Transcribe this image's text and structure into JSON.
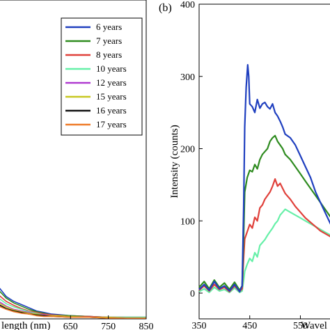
{
  "chart_data": [
    {
      "type": "line",
      "panel": "a",
      "xlabel_visible": "length (nm)",
      "xticks": [
        650,
        750,
        850
      ],
      "xlim": [
        460,
        850
      ],
      "ylim": [
        0,
        400
      ],
      "legend": {
        "placement": "top-right",
        "entries": [
          {
            "name": "6 years",
            "color": "#1f3fbf"
          },
          {
            "name": "7 years",
            "color": "#2e8b1f"
          },
          {
            "name": "8 years",
            "color": "#e0403a"
          },
          {
            "name": "10 years",
            "color": "#66f0a8"
          },
          {
            "name": "12 years",
            "color": "#b03ad0"
          },
          {
            "name": "15 years",
            "color": "#c8c820"
          },
          {
            "name": "16 years",
            "color": "#111111"
          },
          {
            "name": "17 years",
            "color": "#ee7a28"
          }
        ]
      },
      "series": [
        {
          "name": "6 years",
          "color": "#1f3fbf",
          "x": [
            460,
            480,
            500,
            520,
            540,
            560,
            580,
            600,
            650,
            700,
            750,
            800,
            850
          ],
          "y": [
            40,
            28,
            22,
            18,
            14,
            10,
            8,
            6,
            4,
            3,
            2,
            2,
            2
          ]
        },
        {
          "name": "7 years",
          "color": "#2e8b1f",
          "x": [
            460,
            480,
            500,
            520,
            540,
            560,
            580,
            600,
            650,
            700,
            750,
            800,
            850
          ],
          "y": [
            36,
            26,
            20,
            16,
            12,
            9,
            7,
            5,
            4,
            3,
            2,
            2,
            2
          ]
        },
        {
          "name": "8 years",
          "color": "#e0403a",
          "x": [
            460,
            480,
            500,
            520,
            540,
            560,
            580,
            600,
            650,
            700,
            750,
            800,
            850
          ],
          "y": [
            30,
            22,
            17,
            13,
            10,
            8,
            6,
            5,
            3,
            3,
            2,
            2,
            2
          ]
        },
        {
          "name": "10 years",
          "color": "#66f0a8",
          "x": [
            460,
            480,
            500,
            520,
            540,
            560,
            580,
            600,
            650,
            700,
            750,
            800,
            850
          ],
          "y": [
            26,
            19,
            15,
            12,
            9,
            7,
            5,
            4,
            3,
            2,
            2,
            2,
            2
          ]
        },
        {
          "name": "12 years",
          "color": "#b03ad0",
          "x": [
            460,
            480,
            500,
            520,
            540,
            560,
            580,
            600,
            650,
            700,
            750,
            800,
            850
          ],
          "y": [
            22,
            16,
            12,
            10,
            8,
            6,
            5,
            4,
            3,
            2,
            2,
            1,
            1
          ]
        },
        {
          "name": "15 years",
          "color": "#c8c820",
          "x": [
            460,
            480,
            500,
            520,
            540,
            560,
            580,
            600,
            650,
            700,
            750,
            800,
            850
          ],
          "y": [
            20,
            15,
            11,
            9,
            7,
            6,
            4,
            4,
            3,
            2,
            2,
            1,
            1
          ]
        },
        {
          "name": "16 years",
          "color": "#111111",
          "x": [
            460,
            480,
            500,
            520,
            540,
            560,
            580,
            600,
            650,
            700,
            750,
            800,
            850
          ],
          "y": [
            18,
            13,
            10,
            8,
            6,
            5,
            4,
            3,
            2,
            2,
            1,
            1,
            1
          ]
        },
        {
          "name": "17 years",
          "color": "#ee7a28",
          "x": [
            460,
            480,
            500,
            520,
            540,
            560,
            580,
            600,
            650,
            700,
            750,
            800,
            850
          ],
          "y": [
            16,
            12,
            9,
            7,
            6,
            4,
            3,
            3,
            2,
            2,
            1,
            1,
            1
          ]
        }
      ]
    },
    {
      "type": "line",
      "panel": "b",
      "panel_label": "(b)",
      "xlabel_visible": "Wavel",
      "ylabel": "Intensity (counts)",
      "xticks": [
        350,
        450,
        550
      ],
      "yticks": [
        0,
        100,
        200,
        300,
        400
      ],
      "xlim": [
        350,
        625
      ],
      "ylim": [
        0,
        400
      ],
      "series": [
        {
          "name": "6 years",
          "color": "#1f3fbf",
          "x": [
            350,
            360,
            370,
            380,
            390,
            400,
            410,
            420,
            430,
            435,
            438,
            440,
            443,
            446,
            448,
            450,
            455,
            460,
            465,
            470,
            475,
            480,
            485,
            490,
            495,
            500,
            505,
            510,
            515,
            520,
            530,
            540,
            550,
            560,
            570,
            580,
            590,
            600,
            610,
            620,
            625
          ],
          "y": [
            5,
            12,
            4,
            16,
            6,
            10,
            3,
            12,
            2,
            10,
            120,
            230,
            285,
            316,
            300,
            262,
            258,
            250,
            268,
            256,
            262,
            264,
            258,
            255,
            262,
            250,
            245,
            238,
            230,
            220,
            215,
            205,
            190,
            175,
            160,
            140,
            125,
            110,
            95,
            85,
            80
          ]
        },
        {
          "name": "7 years",
          "color": "#2e8b1f",
          "x": [
            350,
            360,
            370,
            380,
            390,
            400,
            410,
            420,
            430,
            435,
            438,
            440,
            445,
            450,
            455,
            460,
            465,
            470,
            475,
            480,
            485,
            490,
            495,
            500,
            505,
            510,
            515,
            520,
            530,
            540,
            550,
            560,
            570,
            580,
            590,
            600,
            610,
            620,
            625
          ],
          "y": [
            8,
            16,
            6,
            18,
            8,
            14,
            5,
            15,
            4,
            10,
            80,
            140,
            160,
            170,
            168,
            178,
            172,
            185,
            192,
            196,
            200,
            210,
            215,
            218,
            210,
            205,
            200,
            192,
            185,
            175,
            165,
            155,
            145,
            135,
            125,
            115,
            105,
            100,
            95
          ]
        },
        {
          "name": "8 years",
          "color": "#e0403a",
          "x": [
            350,
            360,
            370,
            380,
            390,
            400,
            410,
            420,
            430,
            435,
            438,
            440,
            445,
            450,
            455,
            460,
            465,
            470,
            475,
            480,
            485,
            490,
            495,
            500,
            505,
            510,
            515,
            520,
            530,
            540,
            550,
            560,
            570,
            580,
            590,
            600,
            610,
            620,
            625
          ],
          "y": [
            4,
            10,
            3,
            12,
            5,
            8,
            2,
            10,
            2,
            6,
            50,
            75,
            85,
            95,
            90,
            105,
            100,
            118,
            122,
            130,
            135,
            140,
            148,
            158,
            148,
            152,
            145,
            138,
            130,
            120,
            112,
            104,
            98,
            92,
            86,
            82,
            78,
            75,
            72
          ]
        },
        {
          "name": "10 years",
          "color": "#66f0a8",
          "x": [
            350,
            360,
            370,
            380,
            390,
            400,
            410,
            420,
            430,
            435,
            438,
            440,
            445,
            450,
            455,
            460,
            465,
            470,
            475,
            480,
            485,
            490,
            495,
            500,
            505,
            510,
            515,
            520,
            530,
            540,
            550,
            560,
            570,
            580,
            590,
            600,
            610,
            620,
            625
          ],
          "y": [
            2,
            6,
            1,
            8,
            3,
            5,
            1,
            7,
            1,
            3,
            18,
            30,
            40,
            48,
            44,
            56,
            50,
            66,
            70,
            74,
            80,
            85,
            90,
            96,
            100,
            108,
            112,
            116,
            112,
            108,
            104,
            100,
            96,
            92,
            88,
            84,
            80,
            76,
            74
          ]
        }
      ]
    }
  ]
}
